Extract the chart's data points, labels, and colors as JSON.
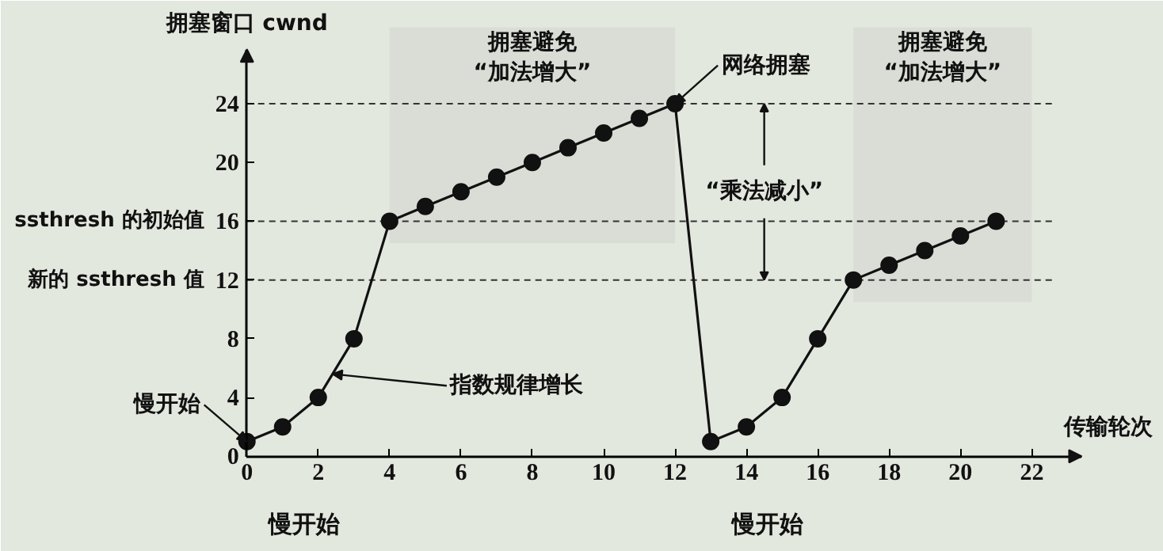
{
  "chart_data": {
    "type": "line",
    "xlabel": "传输轮次",
    "ylabel": "拥塞窗口 cwnd",
    "x": [
      0,
      1,
      2,
      3,
      4,
      5,
      6,
      7,
      8,
      9,
      10,
      11,
      12,
      13,
      14,
      15,
      16,
      17,
      18,
      19,
      20,
      21
    ],
    "series": [
      {
        "color": "#111111",
        "values": [
          1,
          2,
          4,
          8,
          16,
          17,
          18,
          19,
          20,
          21,
          22,
          23,
          24,
          1,
          2,
          4,
          8,
          12,
          13,
          14,
          15,
          16
        ]
      }
    ],
    "xlim": [
      0,
      23.4
    ],
    "ylim": [
      0,
      27.7
    ],
    "xticks": [
      0,
      2,
      4,
      6,
      8,
      10,
      12,
      14,
      16,
      18,
      20,
      22
    ],
    "yticks": [
      0,
      4,
      8,
      12,
      16,
      20,
      24
    ],
    "marker": "circle",
    "line_style": "solid",
    "grid": false,
    "ref_lines": [
      {
        "axis": "y",
        "value": 24,
        "label": null,
        "line_style": "dashed",
        "color": "#333333"
      },
      {
        "axis": "y",
        "value": 16,
        "label": "ssthresh 的初始值",
        "line_style": "dashed",
        "color": "#333333"
      },
      {
        "axis": "y",
        "value": 12,
        "label": "新的 ssthresh 值",
        "line_style": "dashed",
        "color": "#333333"
      }
    ],
    "bands": [
      {
        "axis": "x",
        "from": 4,
        "to": 12,
        "label": "拥塞避免\n“加法增大”",
        "color": "#d9ddd5"
      },
      {
        "axis": "x",
        "from": 17,
        "to": 22,
        "label": "拥塞避免\n“加法增大”",
        "color": "#d9ddd5"
      }
    ],
    "annotations": [
      {
        "text": "网络拥塞",
        "x": 12,
        "y": 24
      },
      {
        "text": "慢开始",
        "x": 0,
        "y": 1
      },
      {
        "text": "指数规律增长",
        "x": 2.4,
        "y": 5.6
      },
      {
        "text": "“乘法减小”",
        "x": 14.5,
        "y": 24
      },
      "慢开始",
      "慢开始"
    ]
  }
}
